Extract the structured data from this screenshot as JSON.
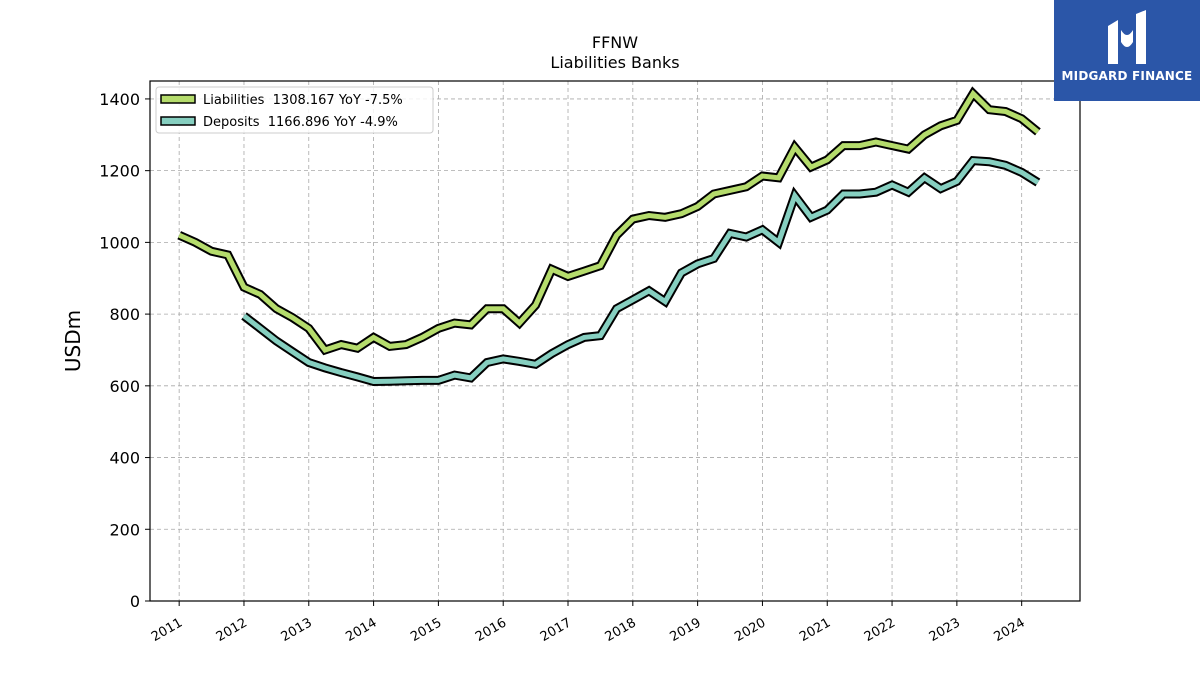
{
  "brand": {
    "name": "MIDGARD FINANCE",
    "bg_color": "#2b56a8"
  },
  "chart_data": {
    "type": "line",
    "title": "FFNW",
    "subtitle": "Liabilities Banks",
    "ylabel": "USDm",
    "xlabel": "",
    "ylim": [
      0,
      1450
    ],
    "yticks": [
      0,
      200,
      400,
      600,
      800,
      1000,
      1200,
      1400
    ],
    "xlim": [
      2010.55,
      2024.9
    ],
    "xticks": [
      "2011",
      "2012",
      "2013",
      "2014",
      "2015",
      "2016",
      "2017",
      "2018",
      "2019",
      "2020",
      "2021",
      "2022",
      "2023",
      "2024"
    ],
    "grid": true,
    "legend_position": "top-left",
    "series": [
      {
        "name": "Liabilities  1308.167 YoY -7.5%",
        "color": "#b5dc6c",
        "x": [
          "2011-01-01",
          "2011-04-01",
          "2011-07-01",
          "2011-10-01",
          "2012-01-01",
          "2012-04-01",
          "2012-07-01",
          "2012-10-01",
          "2013-01-01",
          "2013-04-01",
          "2013-07-01",
          "2013-10-01",
          "2014-01-01",
          "2014-04-01",
          "2014-07-01",
          "2014-10-01",
          "2015-01-01",
          "2015-04-01",
          "2015-07-01",
          "2015-10-01",
          "2016-01-01",
          "2016-04-01",
          "2016-07-01",
          "2016-10-01",
          "2017-01-01",
          "2017-04-01",
          "2017-07-01",
          "2017-10-01",
          "2018-01-01",
          "2018-04-01",
          "2018-07-01",
          "2018-10-01",
          "2019-01-01",
          "2019-04-01",
          "2019-07-01",
          "2019-10-01",
          "2020-01-01",
          "2020-04-01",
          "2020-07-01",
          "2020-10-01",
          "2021-01-01",
          "2021-04-01",
          "2021-07-01",
          "2021-10-01",
          "2022-01-01",
          "2022-04-01",
          "2022-07-01",
          "2022-10-01",
          "2023-01-01",
          "2023-04-01",
          "2023-07-01",
          "2023-10-01",
          "2024-01-01",
          "2024-04-01"
        ],
        "values": [
          1020,
          1000,
          975,
          965,
          875,
          855,
          815,
          790,
          760,
          700,
          715,
          705,
          735,
          710,
          715,
          735,
          760,
          775,
          770,
          815,
          815,
          775,
          825,
          925,
          905,
          920,
          935,
          1020,
          1065,
          1075,
          1070,
          1080,
          1100,
          1135,
          1145,
          1155,
          1185,
          1180,
          1265,
          1210,
          1230,
          1270,
          1270,
          1280,
          1270,
          1260,
          1300,
          1325,
          1340,
          1415,
          1370,
          1365,
          1345,
          1308
        ]
      },
      {
        "name": "Deposits  1166.896 YoY -4.9%",
        "color": "#86cfc0",
        "x": [
          "2012-01-01",
          "2012-04-01",
          "2012-07-01",
          "2012-10-01",
          "2013-01-01",
          "2013-04-01",
          "2013-07-01",
          "2013-10-01",
          "2014-01-01",
          "2014-04-01",
          "2014-07-01",
          "2014-10-01",
          "2015-01-01",
          "2015-04-01",
          "2015-07-01",
          "2015-10-01",
          "2016-01-01",
          "2016-04-01",
          "2016-07-01",
          "2016-10-01",
          "2017-01-01",
          "2017-04-01",
          "2017-07-01",
          "2017-10-01",
          "2018-01-01",
          "2018-04-01",
          "2018-07-01",
          "2018-10-01",
          "2019-01-01",
          "2019-04-01",
          "2019-07-01",
          "2019-10-01",
          "2020-01-01",
          "2020-04-01",
          "2020-07-01",
          "2020-10-01",
          "2021-01-01",
          "2021-04-01",
          "2021-07-01",
          "2021-10-01",
          "2022-01-01",
          "2022-04-01",
          "2022-07-01",
          "2022-10-01",
          "2023-01-01",
          "2023-04-01",
          "2023-07-01",
          "2023-10-01",
          "2024-01-01",
          "2024-04-01"
        ],
        "values": [
          795,
          760,
          725,
          695,
          665,
          650,
          637,
          625,
          612,
          613,
          614,
          615,
          615,
          630,
          622,
          665,
          675,
          668,
          660,
          690,
          715,
          735,
          740,
          815,
          840,
          865,
          835,
          915,
          940,
          955,
          1025,
          1015,
          1035,
          1000,
          1130,
          1070,
          1090,
          1135,
          1135,
          1140,
          1160,
          1140,
          1180,
          1150,
          1170,
          1228,
          1225,
          1215,
          1195,
          1167
        ]
      }
    ]
  }
}
